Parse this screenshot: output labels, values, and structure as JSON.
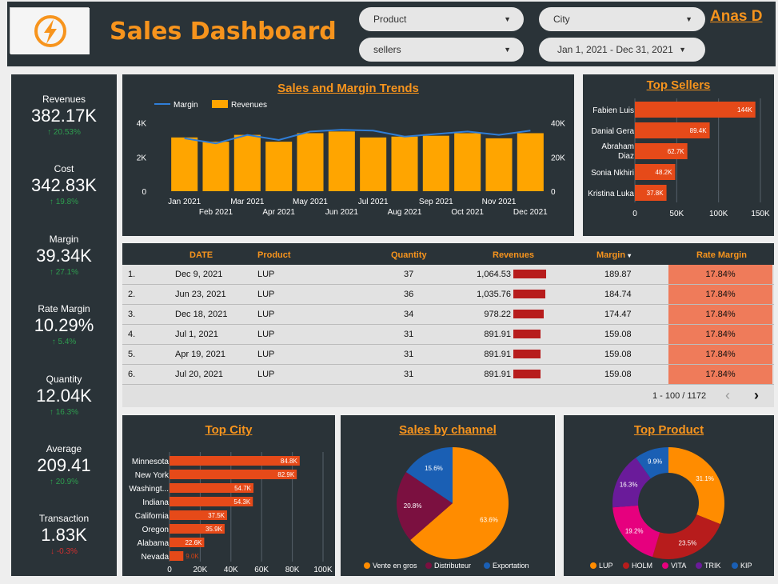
{
  "header": {
    "title": "Sales Dashboard",
    "user": "Anas D",
    "filters": {
      "product": "Product",
      "city": "City",
      "sellers": "sellers",
      "date_range": "Jan 1, 2021 - Dec 31, 2021"
    }
  },
  "kpis": [
    {
      "label": "Revenues",
      "value": "382.17K",
      "change": "↑ 20.53%",
      "dir": "up"
    },
    {
      "label": "Cost",
      "value": "342.83K",
      "change": "↑ 19.8%",
      "dir": "up"
    },
    {
      "label": "Margin",
      "value": "39.34K",
      "change": "↑ 27.1%",
      "dir": "up"
    },
    {
      "label": "Rate Margin",
      "value": "10.29%",
      "change": "↑ 5.4%",
      "dir": "up"
    },
    {
      "label": "Quantity",
      "value": "12.04K",
      "change": "↑ 16.3%",
      "dir": "up"
    },
    {
      "label": "Average",
      "value": "209.41",
      "change": "↑ 20.9%",
      "dir": "up"
    },
    {
      "label": "Transaction",
      "value": "1.83K",
      "change": "↓ -0.3%",
      "dir": "down"
    }
  ],
  "colors": {
    "orange": "#f7941d",
    "bar_orange": "#ffa500",
    "line_blue": "#2f7ed8",
    "seller_bar": "#e64a19",
    "panel": "#2a3338"
  },
  "chart_data": [
    {
      "type": "bar",
      "title": "Sales and Margin Trends",
      "legend": [
        "Margin",
        "Revenues"
      ],
      "categories": [
        "Jan 2021",
        "Feb 2021",
        "Mar 2021",
        "Apr 2021",
        "May 2021",
        "Jun 2021",
        "Jul 2021",
        "Aug 2021",
        "Sep 2021",
        "Oct 2021",
        "Nov 2021",
        "Dec 2021"
      ],
      "series": [
        {
          "name": "Revenues",
          "values": [
            31500,
            29000,
            33000,
            29000,
            34000,
            35000,
            31500,
            32000,
            32500,
            34000,
            31000,
            34000
          ]
        },
        {
          "name": "Margin",
          "values": [
            3100,
            2800,
            3300,
            3000,
            3500,
            3600,
            3550,
            3200,
            3350,
            3500,
            3300,
            3550
          ]
        }
      ],
      "y_left_ticks": [
        "0",
        "2K",
        "4K"
      ],
      "y_left_range": [
        0,
        4500
      ],
      "y_right_ticks": [
        "0",
        "20K",
        "40K"
      ],
      "y_right_range": [
        0,
        45000
      ]
    },
    {
      "type": "bar",
      "title": "Top Sellers",
      "categories": [
        "Fabien Luis",
        "Danial Gera",
        "Abraham Diaz",
        "Sonia Nkhiri",
        "Kristina Luka"
      ],
      "values": [
        144000,
        89400,
        62700,
        48200,
        37800
      ],
      "labels": [
        "144K",
        "89.4K",
        "62.7K",
        "48.2K",
        "37.8K"
      ],
      "x_ticks": [
        "0",
        "50K",
        "100K",
        "150K"
      ],
      "xlim": [
        0,
        150000
      ]
    },
    {
      "type": "bar",
      "title": "Top City",
      "categories": [
        "Minnesota",
        "New York",
        "Washingt...",
        "Indiana",
        "California",
        "Oregon",
        "Alabama",
        "Nevada"
      ],
      "values": [
        84800,
        82900,
        54700,
        54300,
        37500,
        35900,
        22600,
        9000
      ],
      "labels": [
        "84.8K",
        "82.9K",
        "54.7K",
        "54.3K",
        "37.5K",
        "35.9K",
        "22.6K",
        "9.0K"
      ],
      "x_ticks": [
        "0",
        "20K",
        "40K",
        "60K",
        "80K",
        "100K"
      ],
      "xlim": [
        0,
        100000
      ]
    },
    {
      "type": "pie",
      "title": "Sales by channel",
      "categories": [
        "Vente en gros",
        "Distributeur",
        "Exportation"
      ],
      "values": [
        63.6,
        20.8,
        15.6
      ],
      "labels": [
        "63.6%",
        "20.8%",
        "15.6%"
      ],
      "colors": [
        "#ff8c00",
        "#7b1040",
        "#1a5fb4"
      ]
    },
    {
      "type": "pie",
      "title": "Top Product",
      "categories": [
        "LUP",
        "HOLM",
        "VITA",
        "TRIK",
        "KIP"
      ],
      "values": [
        31.1,
        23.5,
        19.2,
        16.3,
        9.9
      ],
      "labels": [
        "31.1%",
        "23.5%",
        "19.2%",
        "16.3%",
        "9.9%"
      ],
      "colors": [
        "#ff8c00",
        "#b71c1c",
        "#e6007e",
        "#6a1b9a",
        "#1a5fb4"
      ]
    }
  ],
  "table": {
    "headers": [
      "DATE",
      "Product",
      "Quantity",
      "Revenues",
      "Margin",
      "Rate Margin"
    ],
    "sort_indicator": "▾",
    "rows": [
      {
        "n": "1.",
        "date": "Dec 9, 2021",
        "product": "LUP",
        "qty": "37",
        "rev": "1,064.53",
        "rev_frac": 1.0,
        "margin": "189.87",
        "rate": "17.84%"
      },
      {
        "n": "2.",
        "date": "Jun 23, 2021",
        "product": "LUP",
        "qty": "36",
        "rev": "1,035.76",
        "rev_frac": 0.97,
        "margin": "184.74",
        "rate": "17.84%"
      },
      {
        "n": "3.",
        "date": "Dec 18, 2021",
        "product": "LUP",
        "qty": "34",
        "rev": "978.22",
        "rev_frac": 0.92,
        "margin": "174.47",
        "rate": "17.84%"
      },
      {
        "n": "4.",
        "date": "Jul 1, 2021",
        "product": "LUP",
        "qty": "31",
        "rev": "891.91",
        "rev_frac": 0.84,
        "margin": "159.08",
        "rate": "17.84%"
      },
      {
        "n": "5.",
        "date": "Apr 19, 2021",
        "product": "LUP",
        "qty": "31",
        "rev": "891.91",
        "rev_frac": 0.84,
        "margin": "159.08",
        "rate": "17.84%"
      },
      {
        "n": "6.",
        "date": "Jul 20, 2021",
        "product": "LUP",
        "qty": "31",
        "rev": "891.91",
        "rev_frac": 0.84,
        "margin": "159.08",
        "rate": "17.84%"
      }
    ],
    "pagination": "1 - 100 / 1172"
  }
}
